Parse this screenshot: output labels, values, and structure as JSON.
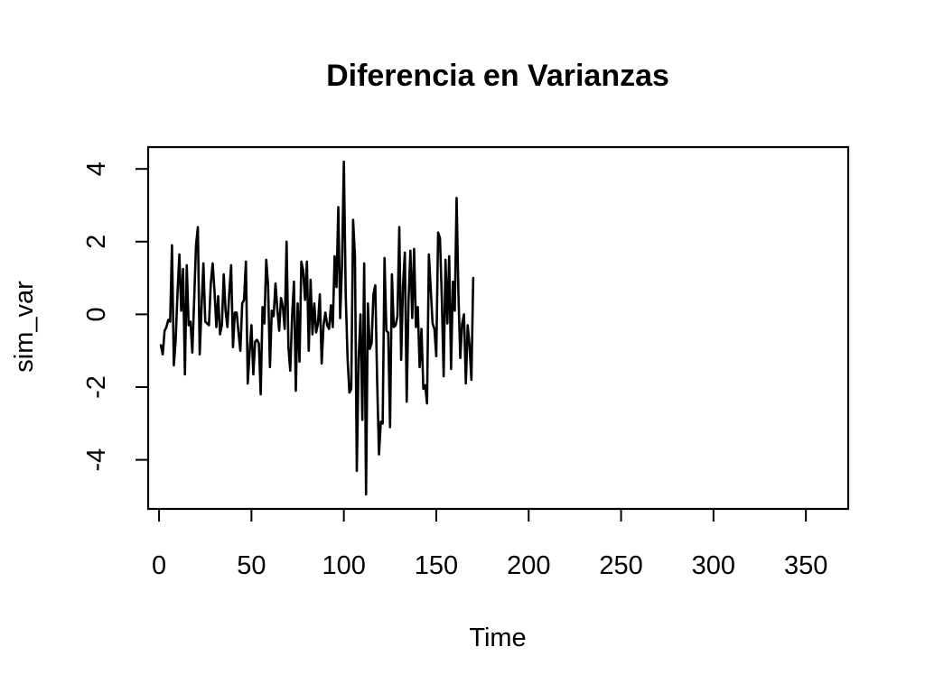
{
  "chart_data": {
    "type": "line",
    "title": "Diferencia en Varianzas",
    "xlabel": "Time",
    "ylabel": "sim_var",
    "xlim": [
      -5.9,
      372.9
    ],
    "ylim": [
      -5.35,
      4.6
    ],
    "x_ticks": [
      0,
      50,
      100,
      150,
      200,
      250,
      300,
      350
    ],
    "y_ticks": [
      -4,
      -2,
      0,
      2,
      4
    ],
    "x_start": 1,
    "x_step": 1,
    "grid": false,
    "legend": "none",
    "line_color": "#000000",
    "series": [
      {
        "values": [
          -0.85,
          -1.1,
          -0.45,
          -0.35,
          -0.15,
          -0.2,
          1.9,
          -1.4,
          -0.7,
          0.6,
          1.65,
          0.1,
          1.25,
          -1.65,
          1.35,
          -0.3,
          -0.2,
          -1.05,
          0.4,
          1.9,
          2.4,
          -1.1,
          0.2,
          1.4,
          -0.2,
          -0.25,
          -0.3,
          0.85,
          1.4,
          0.65,
          -0.35,
          0.5,
          -0.55,
          -0.3,
          1.1,
          0.1,
          -0.35,
          0.6,
          1.35,
          -0.9,
          0.05,
          0.05,
          -0.5,
          -1.0,
          0.3,
          0.4,
          1.45,
          -1.9,
          -1.05,
          -0.3,
          -1.65,
          -0.75,
          -0.7,
          -0.8,
          -2.2,
          0.2,
          -0.25,
          1.5,
          0.8,
          -1.45,
          0.1,
          -0.05,
          0.85,
          0.15,
          -0.45,
          0.45,
          0.2,
          -0.4,
          2.0,
          -0.9,
          -1.55,
          -0.05,
          0.9,
          -2.1,
          0.3,
          -1.3,
          1.45,
          1.2,
          0.4,
          1.45,
          -1.0,
          0.95,
          -0.55,
          0.3,
          -0.5,
          -0.25,
          0.55,
          -1.35,
          -0.3,
          0.05,
          -0.3,
          -0.4,
          0.25,
          -0.35,
          1.6,
          0.75,
          2.95,
          -0.1,
          1.35,
          4.2,
          0.55,
          -1.2,
          -2.15,
          -2.05,
          2.6,
          1.6,
          -4.3,
          -1.2,
          0.0,
          -2.9,
          1.4,
          -4.95,
          0.3,
          -0.95,
          -0.8,
          0.55,
          0.8,
          -1.8,
          -3.85,
          -2.95,
          -3.0,
          1.55,
          -0.45,
          -0.5,
          -3.1,
          1.1,
          -0.35,
          -0.3,
          -0.05,
          2.4,
          -1.25,
          0.8,
          1.7,
          -2.4,
          0.4,
          1.75,
          -0.1,
          1.8,
          -0.35,
          0.2,
          -1.45,
          -0.4,
          -2.05,
          -1.95,
          -2.45,
          1.65,
          0.7,
          -0.25,
          -0.4,
          -1.15,
          2.25,
          2.1,
          0.45,
          -1.7,
          1.5,
          -0.25,
          1.6,
          -1.5,
          0.9,
          0.1,
          3.2,
          0.55,
          -1.2,
          -0.25,
          0.0,
          -1.9,
          -0.3,
          -0.85,
          -1.8,
          1.0
        ]
      }
    ]
  }
}
